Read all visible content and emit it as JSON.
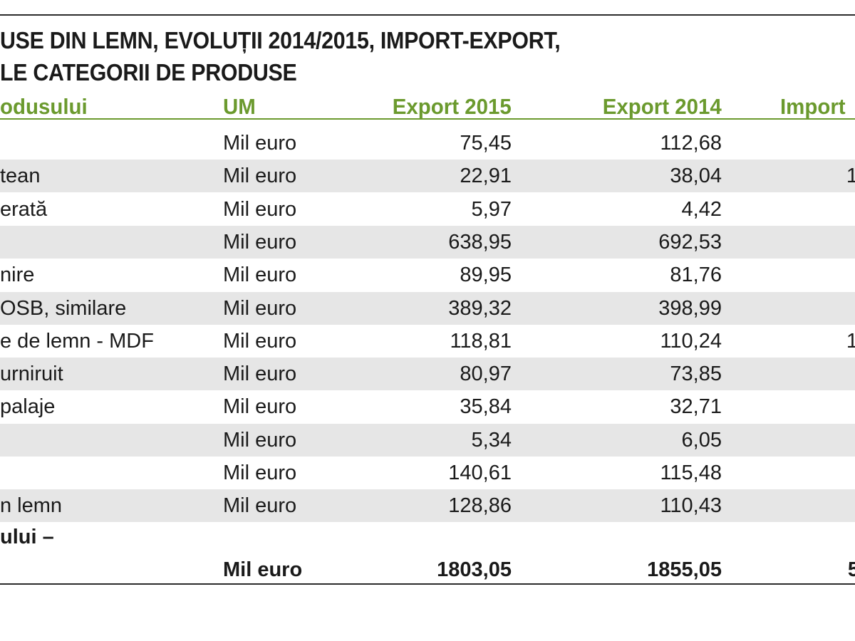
{
  "title": {
    "line1": "USE DIN LEMN, EVOLUȚII  2014/2015, IMPORT-EXPORT,",
    "line2": "LE CATEGORII DE PRODUSE"
  },
  "headers": {
    "name": "odusului",
    "um": "UM",
    "export_2015": "Export 2015",
    "export_2014": "Export 2014",
    "import_2015": "Import"
  },
  "rows": [
    {
      "name": "",
      "um": "Mil euro",
      "export_2015": "75,45",
      "export_2014": "112,68",
      "import_2015": ""
    },
    {
      "name": "tean",
      "um": "Mil euro",
      "export_2015": "22,91",
      "export_2014": "38,04",
      "import_2015": "1"
    },
    {
      "name": "erată",
      "um": "Mil euro",
      "export_2015": "5,97",
      "export_2014": "4,42",
      "import_2015": ""
    },
    {
      "name": "",
      "um": "Mil euro",
      "export_2015": "638,95",
      "export_2014": "692,53",
      "import_2015": ""
    },
    {
      "name": "nire",
      "um": "Mil euro",
      "export_2015": "89,95",
      "export_2014": "81,76",
      "import_2015": ""
    },
    {
      "name": "OSB, similare",
      "um": "Mil euro",
      "export_2015": "389,32",
      "export_2014": "398,99",
      "import_2015": ""
    },
    {
      "name": "e de lemn - MDF",
      "um": "Mil euro",
      "export_2015": "118,81",
      "export_2014": "110,24",
      "import_2015": "1"
    },
    {
      "name": "urniruit",
      "um": "Mil euro",
      "export_2015": "80,97",
      "export_2014": "73,85",
      "import_2015": ""
    },
    {
      "name": "palaje",
      "um": "Mil euro",
      "export_2015": "35,84",
      "export_2014": "32,71",
      "import_2015": ""
    },
    {
      "name": "",
      "um": "Mil euro",
      "export_2015": "5,34",
      "export_2014": "6,05",
      "import_2015": ""
    },
    {
      "name": "",
      "um": "Mil euro",
      "export_2015": "140,61",
      "export_2014": "115,48",
      "import_2015": ""
    },
    {
      "name": "n lemn",
      "um": "Mil euro",
      "export_2015": "128,86",
      "export_2014": "110,43",
      "import_2015": ""
    }
  ],
  "total": {
    "label": "ului –",
    "um": "Mil euro",
    "export_2015": "1803,05",
    "export_2014": "1855,05",
    "import_2015": "5"
  }
}
